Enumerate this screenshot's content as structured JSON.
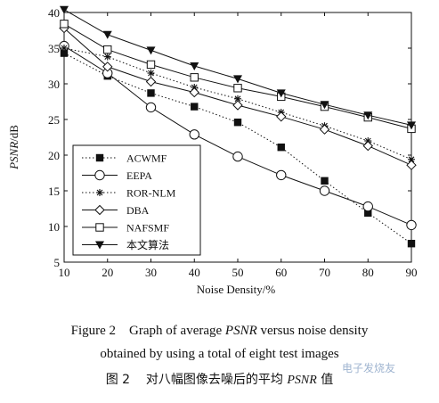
{
  "chart_data": {
    "type": "line",
    "xlabel": "Noise Density/%",
    "ylabel": "PSNR/dB",
    "x": [
      10,
      20,
      30,
      40,
      50,
      60,
      70,
      80,
      90
    ],
    "xlim": [
      10,
      90
    ],
    "ylim": [
      5,
      40
    ],
    "xticks": [
      "10",
      "20",
      "30",
      "40",
      "50",
      "60",
      "70",
      "80",
      "90"
    ],
    "yticks": [
      "5",
      "10",
      "15",
      "20",
      "25",
      "30",
      "35",
      "40"
    ],
    "grid": false,
    "legend_position": "bottom-left",
    "series": [
      {
        "name": "ACWMF",
        "style": "dotted",
        "marker": "filled-square",
        "values": [
          34.3,
          31.1,
          28.7,
          26.8,
          24.6,
          21.1,
          16.4,
          11.9,
          7.6
        ]
      },
      {
        "name": "EEPA",
        "style": "solid",
        "marker": "open-circle",
        "values": [
          35.3,
          31.5,
          26.7,
          22.9,
          19.8,
          17.2,
          15.0,
          12.8,
          10.2
        ]
      },
      {
        "name": "ROR-NLM",
        "style": "dotted",
        "marker": "star",
        "values": [
          35.0,
          33.8,
          31.5,
          29.5,
          27.9,
          26.0,
          24.1,
          22.0,
          19.4
        ]
      },
      {
        "name": "DBA",
        "style": "solid",
        "marker": "open-diamond",
        "values": [
          37.8,
          32.4,
          30.3,
          28.8,
          27.0,
          25.4,
          23.6,
          21.3,
          18.6
        ]
      },
      {
        "name": "NAFSMF",
        "style": "solid",
        "marker": "open-square",
        "values": [
          38.4,
          34.8,
          32.7,
          30.9,
          29.4,
          28.2,
          26.8,
          25.3,
          23.7
        ]
      },
      {
        "name": "本文算法",
        "style": "solid",
        "marker": "filled-triangle-down",
        "values": [
          40.4,
          36.9,
          34.7,
          32.5,
          30.7,
          28.7,
          27.1,
          25.6,
          24.2
        ]
      }
    ]
  },
  "caption": {
    "line1_prefix": "Figure 2    Graph of average ",
    "line1_italic": "PSNR",
    "line1_suffix": " versus noise density",
    "line2": "obtained by using a total of eight test images",
    "line3_prefix": "图 2    对八幅图像去噪后的平均 ",
    "line3_italic": "PSNR",
    "line3_suffix": " 值"
  },
  "watermark": "电子发烧友"
}
